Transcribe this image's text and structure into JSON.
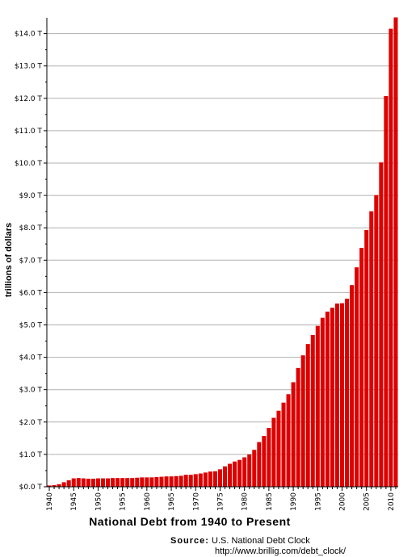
{
  "chart_data": {
    "type": "bar",
    "title": "National Debt from 1940 to Present",
    "ylabel": "trillions of dollars",
    "xlabel": "",
    "ylim": [
      0,
      14.5
    ],
    "grid": true,
    "bar_color": "#dd0000",
    "grid_color": "#b0b0b0",
    "y_ticks": [
      {
        "value": 0,
        "label": "$0.0 T"
      },
      {
        "value": 1,
        "label": "$1.0 T"
      },
      {
        "value": 2,
        "label": "$2.0 T"
      },
      {
        "value": 3,
        "label": "$3.0 T"
      },
      {
        "value": 4,
        "label": "$4.0 T"
      },
      {
        "value": 5,
        "label": "$5.0 T"
      },
      {
        "value": 6,
        "label": "$6.0 T"
      },
      {
        "value": 7,
        "label": "$7.0 T"
      },
      {
        "value": 8,
        "label": "$8.0 T"
      },
      {
        "value": 9,
        "label": "$9.0 T"
      },
      {
        "value": 10,
        "label": "$10.0 T"
      },
      {
        "value": 11,
        "label": "$11.0 T"
      },
      {
        "value": 12,
        "label": "$12.0 T"
      },
      {
        "value": 13,
        "label": "$13.0 T"
      },
      {
        "value": 14,
        "label": "$14.0 T"
      }
    ],
    "x_tick_labels": [
      "1940",
      "1945",
      "1950",
      "1955",
      "1960",
      "1965",
      "1970",
      "1975",
      "1980",
      "1985",
      "1990",
      "1995",
      "2000",
      "2005",
      "2010"
    ],
    "categories": [
      "1940",
      "1941",
      "1942",
      "1943",
      "1944",
      "1945",
      "1946",
      "1947",
      "1948",
      "1949",
      "1950",
      "1951",
      "1952",
      "1953",
      "1954",
      "1955",
      "1956",
      "1957",
      "1958",
      "1959",
      "1960",
      "1961",
      "1962",
      "1963",
      "1964",
      "1965",
      "1966",
      "1967",
      "1968",
      "1969",
      "1970",
      "1971",
      "1972",
      "1973",
      "1974",
      "1975",
      "1976",
      "1977",
      "1978",
      "1979",
      "1980",
      "1981",
      "1982",
      "1983",
      "1984",
      "1985",
      "1986",
      "1987",
      "1988",
      "1989",
      "1990",
      "1991",
      "1992",
      "1993",
      "1994",
      "1995",
      "1996",
      "1997",
      "1998",
      "1999",
      "2000",
      "2001",
      "2002",
      "2003",
      "2004",
      "2005",
      "2006",
      "2007",
      "2008",
      "2009",
      "2010",
      "2011"
    ],
    "values": [
      0.04,
      0.05,
      0.08,
      0.14,
      0.2,
      0.26,
      0.27,
      0.26,
      0.25,
      0.25,
      0.26,
      0.26,
      0.26,
      0.27,
      0.27,
      0.27,
      0.27,
      0.27,
      0.28,
      0.29,
      0.29,
      0.29,
      0.3,
      0.31,
      0.32,
      0.32,
      0.33,
      0.34,
      0.37,
      0.37,
      0.39,
      0.41,
      0.44,
      0.47,
      0.48,
      0.54,
      0.63,
      0.71,
      0.78,
      0.83,
      0.91,
      1.0,
      1.14,
      1.38,
      1.57,
      1.82,
      2.13,
      2.35,
      2.6,
      2.86,
      3.23,
      3.67,
      4.06,
      4.41,
      4.69,
      4.97,
      5.22,
      5.41,
      5.53,
      5.66,
      5.67,
      5.81,
      6.23,
      6.78,
      7.38,
      7.93,
      8.51,
      9.01,
      10.02,
      12.07,
      14.15,
      14.5
    ]
  },
  "source": {
    "label": "Source:",
    "name": "U.S. National Debt Clock",
    "url": "http://www.brillig.com/debt_clock/"
  }
}
